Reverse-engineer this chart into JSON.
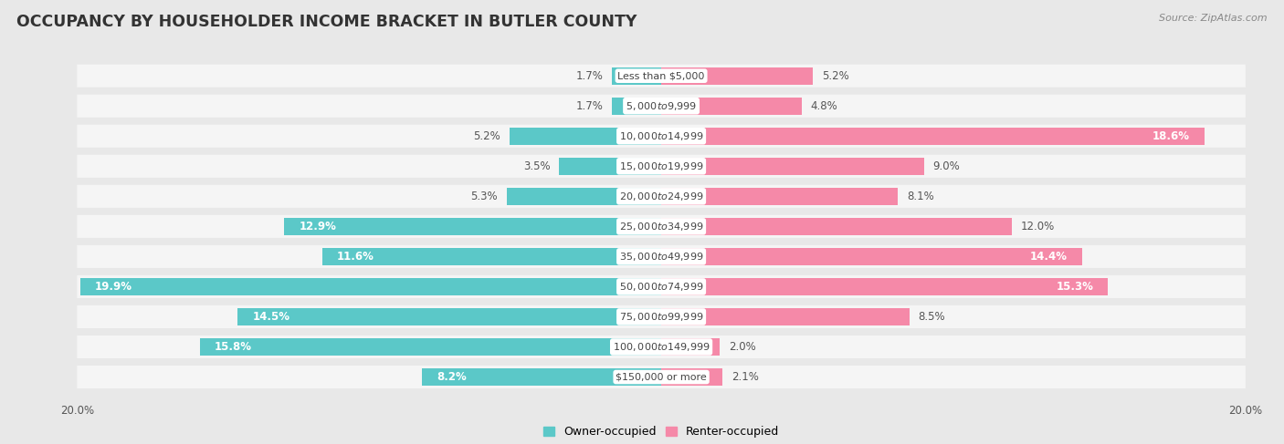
{
  "title": "OCCUPANCY BY HOUSEHOLDER INCOME BRACKET IN BUTLER COUNTY",
  "source": "Source: ZipAtlas.com",
  "categories": [
    "Less than $5,000",
    "$5,000 to $9,999",
    "$10,000 to $14,999",
    "$15,000 to $19,999",
    "$20,000 to $24,999",
    "$25,000 to $34,999",
    "$35,000 to $49,999",
    "$50,000 to $74,999",
    "$75,000 to $99,999",
    "$100,000 to $149,999",
    "$150,000 or more"
  ],
  "owner_values": [
    1.7,
    1.7,
    5.2,
    3.5,
    5.3,
    12.9,
    11.6,
    19.9,
    14.5,
    15.8,
    8.2
  ],
  "renter_values": [
    5.2,
    4.8,
    18.6,
    9.0,
    8.1,
    12.0,
    14.4,
    15.3,
    8.5,
    2.0,
    2.1
  ],
  "owner_color": "#5BC8C8",
  "renter_color": "#F589A8",
  "background_color": "#e8e8e8",
  "row_background": "#f5f5f5",
  "xlim": 20.0,
  "bar_height": 0.58,
  "title_fontsize": 12.5,
  "label_fontsize": 8.5,
  "category_fontsize": 8.0,
  "legend_fontsize": 9,
  "source_fontsize": 8,
  "owner_label_threshold": 8.0,
  "renter_label_threshold": 14.0
}
